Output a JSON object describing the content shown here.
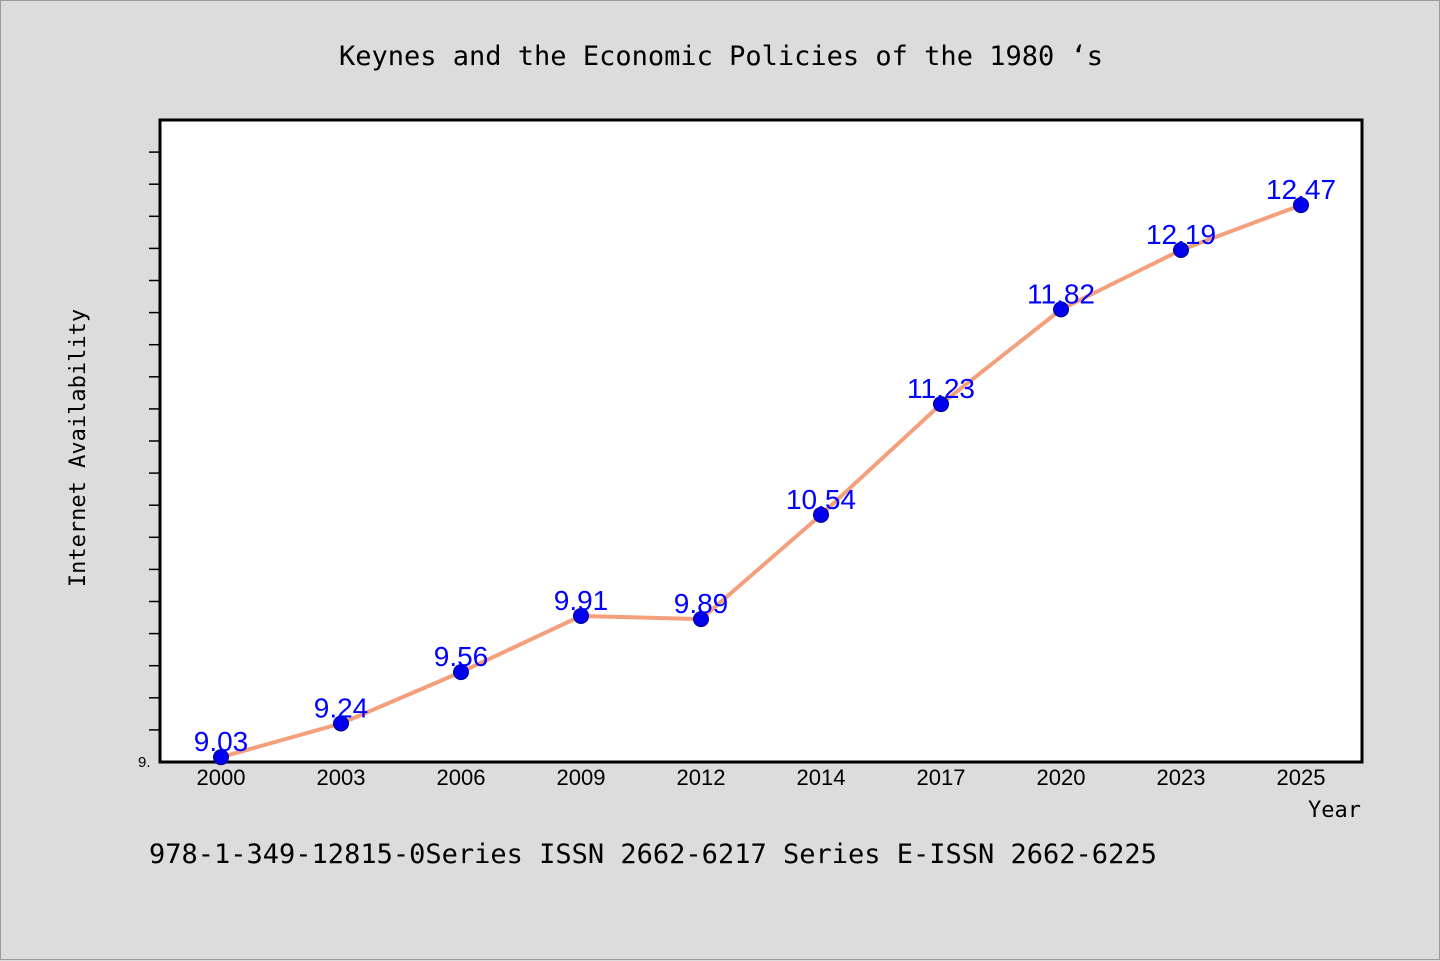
{
  "chart_data": {
    "type": "line",
    "title": "Keynes and the Economic Policies of the 1980 ‘s",
    "xlabel": "Year",
    "ylabel": "Internet Availability",
    "categories": [
      "2000",
      "2003",
      "2006",
      "2009",
      "2012",
      "2014",
      "2017",
      "2020",
      "2023",
      "2025"
    ],
    "series": [
      {
        "values": [
          9.03,
          9.24,
          9.56,
          9.91,
          9.89,
          10.54,
          11.23,
          11.82,
          12.19,
          12.47
        ],
        "data_labels": [
          "9.03",
          "9.24",
          "9.56",
          "9.91",
          "9.89",
          "10.54",
          "11.23",
          "11.82",
          "12.19",
          "12.47"
        ],
        "line_color": "#f4a07c",
        "marker_color": "#0000ee"
      }
    ],
    "ylim": [
      9.0,
      13.0
    ],
    "y_tick_label": "9.",
    "grid": false,
    "legend": "none"
  },
  "footer": {
    "text": "978-1-349-12815-0Series ISSN 2662-6217 Series E-ISSN 2662-6225"
  },
  "colors": {
    "background": "#dcdcdc",
    "plot_area": "#ffffff",
    "label_color": "#0000ff"
  }
}
